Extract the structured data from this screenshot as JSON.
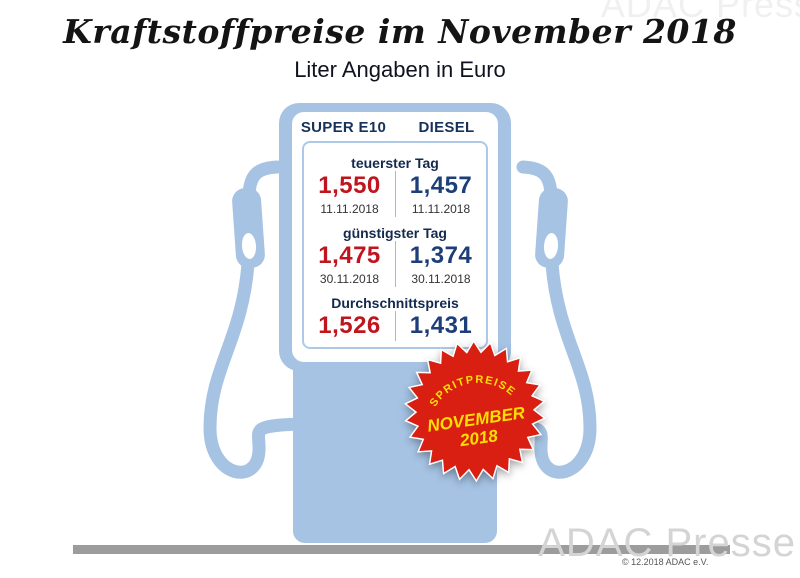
{
  "title": "Kraftstoffpreise im November 2018",
  "subtitle": "Liter Angaben in Euro",
  "pump": {
    "columns": [
      "SUPER E10",
      "DIESEL"
    ],
    "sections": [
      {
        "label": "teuerster Tag",
        "super_price": "1,550",
        "super_date": "11.11.2018",
        "diesel_price": "1,457",
        "diesel_date": "11.11.2018"
      },
      {
        "label": "günstigster Tag",
        "super_price": "1,475",
        "super_date": "30.11.2018",
        "diesel_price": "1,374",
        "diesel_date": "30.11.2018"
      },
      {
        "label": "Durchschnittspreis",
        "super_price": "1,526",
        "diesel_price": "1,431"
      }
    ]
  },
  "badge": {
    "arc": "SPRITPREISE",
    "month": "NOVEMBER",
    "year": "2018"
  },
  "footer": {
    "watermark": "ADAC Presse",
    "copyright": "© 12.2018  ADAC e.V."
  },
  "colors": {
    "pump_blue": "#a6c3e4",
    "price_red": "#c0151f",
    "price_blue": "#1d3e78",
    "badge_red": "#d81f12",
    "badge_yellow": "#ffdf00"
  },
  "chart_data": {
    "type": "table",
    "title": "Kraftstoffpreise im November 2018",
    "subtitle": "Liter Angaben in Euro",
    "unit": "Euro pro Liter",
    "columns": [
      "SUPER E10",
      "DIESEL"
    ],
    "rows": [
      {
        "label": "teuerster Tag",
        "date": "11.11.2018",
        "super_e10": 1.55,
        "diesel": 1.457
      },
      {
        "label": "günstigster Tag",
        "date": "30.11.2018",
        "super_e10": 1.475,
        "diesel": 1.374
      },
      {
        "label": "Durchschnittspreis",
        "super_e10": 1.526,
        "diesel": 1.431
      }
    ]
  }
}
